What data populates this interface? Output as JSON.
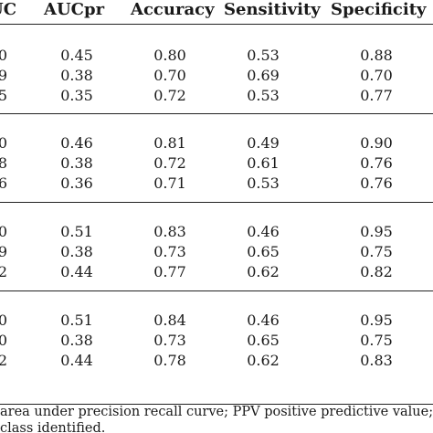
{
  "table": {
    "headers": [
      "UC",
      "AUCpr",
      "Accuracy",
      "Sensitivity",
      "Specificity"
    ],
    "groups": [
      {
        "rows": [
          [
            "0",
            "0.45",
            "0.80",
            "0.53",
            "0.88"
          ],
          [
            "9",
            "0.38",
            "0.70",
            "0.69",
            "0.70"
          ],
          [
            "5",
            "0.35",
            "0.72",
            "0.53",
            "0.77"
          ]
        ]
      },
      {
        "rows": [
          [
            "0",
            "0.46",
            "0.81",
            "0.49",
            "0.90"
          ],
          [
            "8",
            "0.38",
            "0.72",
            "0.61",
            "0.76"
          ],
          [
            "6",
            "0.36",
            "0.71",
            "0.53",
            "0.76"
          ]
        ]
      },
      {
        "rows": [
          [
            "0",
            "0.51",
            "0.83",
            "0.46",
            "0.95"
          ],
          [
            "9",
            "0.38",
            "0.73",
            "0.65",
            "0.75"
          ],
          [
            "2",
            "0.44",
            "0.77",
            "0.62",
            "0.82"
          ]
        ]
      },
      {
        "rows": [
          [
            "0",
            "0.51",
            "0.84",
            "0.46",
            "0.95"
          ],
          [
            "0",
            "0.38",
            "0.73",
            "0.65",
            "0.75"
          ],
          [
            "2",
            "0.44",
            "0.78",
            "0.62",
            "0.83"
          ]
        ]
      }
    ]
  },
  "footnote": {
    "line1": "area under precision recall curve; PPV positive predictive value;",
    "line2": "class identified."
  }
}
